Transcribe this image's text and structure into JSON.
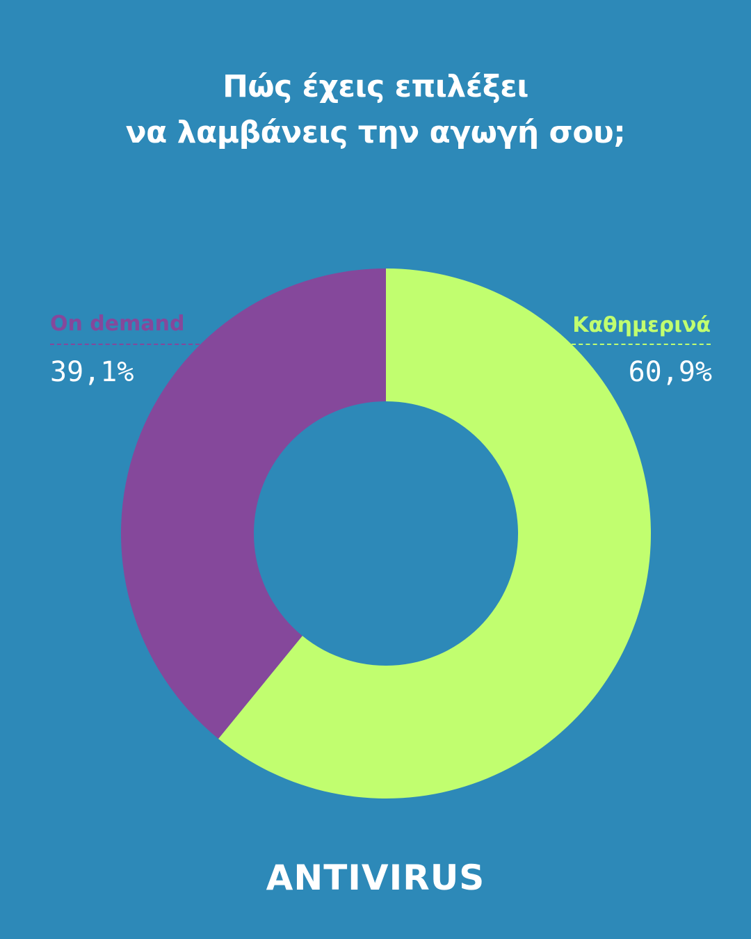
{
  "title_lines": [
    "Πώς έχεις επιλέξει",
    "να λαμβάνεις την αγωγή σου;"
  ],
  "brand": "ANTIVIRUS",
  "colors": {
    "background": "#2d89b8",
    "on_demand": "#85489b",
    "daily": "#c1fe6f",
    "text": "#ffffff"
  },
  "chart_data": {
    "type": "pie",
    "variant": "donut",
    "title": "Πώς έχεις επιλέξει να λαμβάνεις την αγωγή σου;",
    "slices": [
      {
        "name": "Καθημερινά",
        "value": 60.9,
        "label": "60,9%",
        "color": "#c1fe6f"
      },
      {
        "name": "On demand",
        "value": 39.1,
        "label": "39,1%",
        "color": "#85489b"
      }
    ],
    "start_angle_deg": 0,
    "direction": "clockwise",
    "legend_placement": "left and right of chart, above"
  }
}
